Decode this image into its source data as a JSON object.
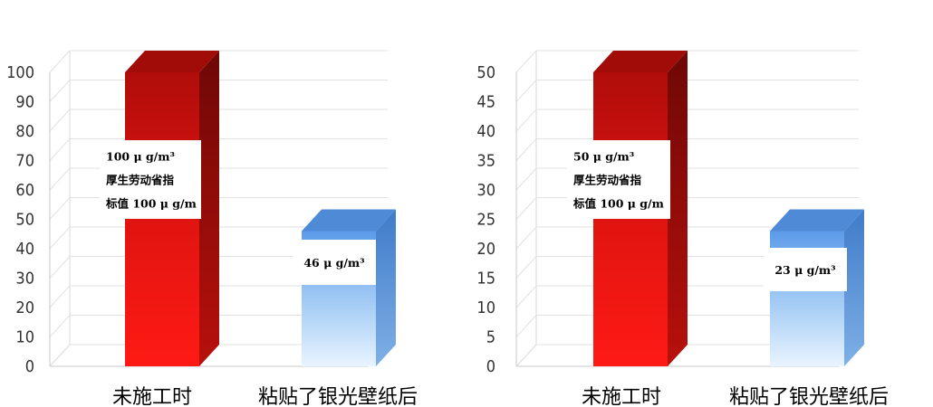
{
  "chart_data": [
    {
      "type": "bar",
      "categories": [
        "未施工时",
        "粘贴了银光壁纸后"
      ],
      "values": [
        100,
        46
      ],
      "ylim": [
        0,
        100
      ],
      "yticks": [
        0,
        10,
        20,
        30,
        40,
        50,
        60,
        70,
        80,
        90,
        100
      ],
      "grid": true,
      "bar_colors": [
        "#e8140f",
        "#8fc2f5"
      ],
      "data_labels": [
        [
          "100 μ g/m³",
          "厚生劳动省指",
          "标值 100 μ g/m"
        ],
        [
          "46 μ g/m³"
        ]
      ]
    },
    {
      "type": "bar",
      "categories": [
        "未施工时",
        "粘贴了银光壁纸后"
      ],
      "values": [
        50,
        23
      ],
      "ylim": [
        0,
        50
      ],
      "yticks": [
        0,
        5,
        10,
        15,
        20,
        25,
        30,
        35,
        40,
        45,
        50
      ],
      "grid": true,
      "bar_colors": [
        "#e8140f",
        "#8fc2f5"
      ],
      "data_labels": [
        [
          "50 μ g/m³",
          "厚生劳动省指",
          "标值 100 μ g/m"
        ],
        [
          "23 μ g/m³"
        ]
      ]
    }
  ]
}
